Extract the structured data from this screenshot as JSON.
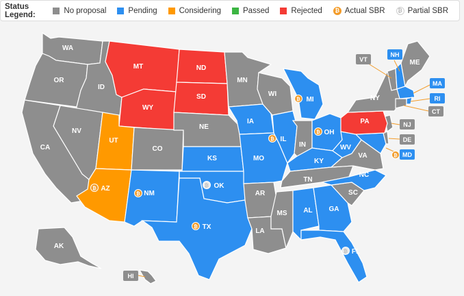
{
  "legend": {
    "title": "Status Legend:",
    "items": [
      {
        "label": "No proposal",
        "color": "#8e8e8e",
        "kind": "swatch"
      },
      {
        "label": "Pending",
        "color": "#2d8ff0",
        "kind": "swatch"
      },
      {
        "label": "Considering",
        "color": "#ff9900",
        "kind": "swatch"
      },
      {
        "label": "Passed",
        "color": "#3cb543",
        "kind": "swatch"
      },
      {
        "label": "Rejected",
        "color": "#f43b35",
        "kind": "swatch"
      },
      {
        "label": "Actual SBR",
        "color": "#f39c2a",
        "kind": "bitcoin-coin-icon"
      },
      {
        "label": "Partial SBR",
        "color": "#d5d5d5",
        "kind": "bitcoin-coin-outline-icon"
      }
    ]
  },
  "colors": {
    "no_proposal": "#8e8e8e",
    "pending": "#2d8ff0",
    "considering": "#ff9900",
    "rejected": "#f43b35",
    "actual_sbr": "#f39c2a",
    "partial_sbr": "#d5d5d5"
  },
  "states": {
    "WA": {
      "label": "WA",
      "status": "No proposal"
    },
    "OR": {
      "label": "OR",
      "status": "No proposal"
    },
    "ID": {
      "label": "ID",
      "status": "No proposal"
    },
    "MT": {
      "label": "MT",
      "status": "Rejected"
    },
    "WY": {
      "label": "WY",
      "status": "Rejected"
    },
    "ND": {
      "label": "ND",
      "status": "Rejected"
    },
    "SD": {
      "label": "SD",
      "status": "Rejected"
    },
    "NV": {
      "label": "NV",
      "status": "No proposal"
    },
    "CA": {
      "label": "CA",
      "status": "No proposal"
    },
    "UT": {
      "label": "UT",
      "status": "Considering"
    },
    "AZ": {
      "label": "AZ",
      "status": "Considering",
      "sbr": "Actual SBR"
    },
    "CO": {
      "label": "CO",
      "status": "No proposal"
    },
    "NM": {
      "label": "NM",
      "status": "Pending",
      "sbr": "Actual SBR"
    },
    "NE": {
      "label": "NE",
      "status": "No proposal"
    },
    "KS": {
      "label": "KS",
      "status": "Pending"
    },
    "OK": {
      "label": "OK",
      "status": "Pending",
      "sbr": "Partial SBR"
    },
    "TX": {
      "label": "TX",
      "status": "Pending",
      "sbr": "Actual SBR"
    },
    "MN": {
      "label": "MN",
      "status": "No proposal"
    },
    "IA": {
      "label": "IA",
      "status": "Pending"
    },
    "MO": {
      "label": "MO",
      "status": "Pending"
    },
    "AR": {
      "label": "AR",
      "status": "No proposal"
    },
    "LA": {
      "label": "LA",
      "status": "No proposal"
    },
    "WI": {
      "label": "WI",
      "status": "No proposal"
    },
    "IL": {
      "label": "IL",
      "status": "Pending",
      "sbr": "Actual SBR"
    },
    "MI": {
      "label": "MI",
      "status": "Pending",
      "sbr": "Actual SBR"
    },
    "IN": {
      "label": "IN",
      "status": "No proposal"
    },
    "OH": {
      "label": "OH",
      "status": "Pending",
      "sbr": "Actual SBR"
    },
    "KY": {
      "label": "KY",
      "status": "Pending"
    },
    "TN": {
      "label": "TN",
      "status": "No proposal"
    },
    "MS": {
      "label": "MS",
      "status": "No proposal"
    },
    "AL": {
      "label": "AL",
      "status": "Pending"
    },
    "GA": {
      "label": "GA",
      "status": "Pending"
    },
    "FL": {
      "label": "FL",
      "status": "Pending",
      "sbr": "Partial SBR"
    },
    "SC": {
      "label": "SC",
      "status": "No proposal"
    },
    "NC": {
      "label": "NC",
      "status": "Pending"
    },
    "VA": {
      "label": "VA",
      "status": "No proposal"
    },
    "WV": {
      "label": "WV",
      "status": "Pending"
    },
    "PA": {
      "label": "PA",
      "status": "Rejected"
    },
    "NY": {
      "label": "NY",
      "status": "No proposal"
    },
    "ME": {
      "label": "ME",
      "status": "No proposal"
    },
    "AK": {
      "label": "AK",
      "status": "No proposal"
    },
    "HI": {
      "label": "HI",
      "status": "No proposal"
    },
    "VT": {
      "label": "VT",
      "status": "No proposal"
    },
    "NH": {
      "label": "NH",
      "status": "Pending"
    },
    "MA": {
      "label": "MA",
      "status": "Pending"
    },
    "RI": {
      "label": "RI",
      "status": "Pending"
    },
    "CT": {
      "label": "CT",
      "status": "No proposal"
    },
    "NJ": {
      "label": "NJ",
      "status": "No proposal"
    },
    "DE": {
      "label": "DE",
      "status": "No proposal"
    },
    "MD": {
      "label": "MD",
      "status": "Pending",
      "sbr": "Actual SBR"
    }
  }
}
